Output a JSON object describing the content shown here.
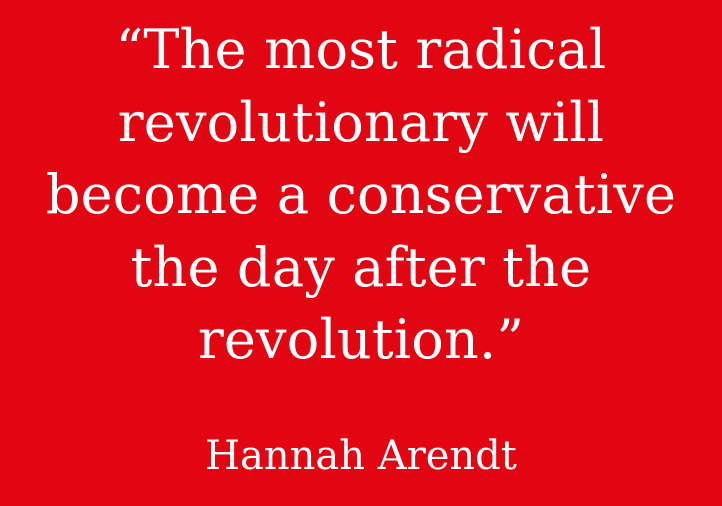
{
  "background_color": "#e20613",
  "text_color": "#ffffff",
  "quote": {
    "lines": [
      "“The most radical",
      "revolutionary will",
      "become a conservative",
      "the day after the",
      "revolution.”"
    ]
  },
  "author": "Hannah Arendt"
}
